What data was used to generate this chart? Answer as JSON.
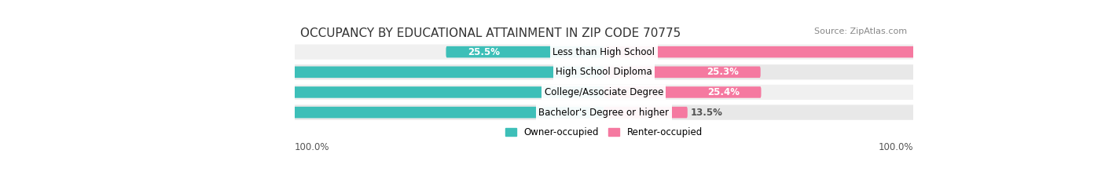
{
  "title": "OCCUPANCY BY EDUCATIONAL ATTAINMENT IN ZIP CODE 70775",
  "source": "Source: ZipAtlas.com",
  "categories": [
    "Less than High School",
    "High School Diploma",
    "College/Associate Degree",
    "Bachelor's Degree or higher"
  ],
  "owner_pct": [
    25.5,
    74.7,
    74.6,
    86.5
  ],
  "renter_pct": [
    74.5,
    25.3,
    25.4,
    13.5
  ],
  "owner_color": "#3dbfb8",
  "renter_color": "#f579a0",
  "owner_label": "Owner-occupied",
  "renter_label": "Renter-occupied",
  "axis_label_left": "100.0%",
  "axis_label_right": "100.0%",
  "title_fontsize": 11,
  "label_fontsize": 8.5,
  "source_fontsize": 8,
  "bg_color": "#ffffff",
  "bar_height": 0.55,
  "row_bg_colors": [
    "#f0f0f0",
    "#e8e8e8",
    "#f0f0f0",
    "#e8e8e8"
  ]
}
